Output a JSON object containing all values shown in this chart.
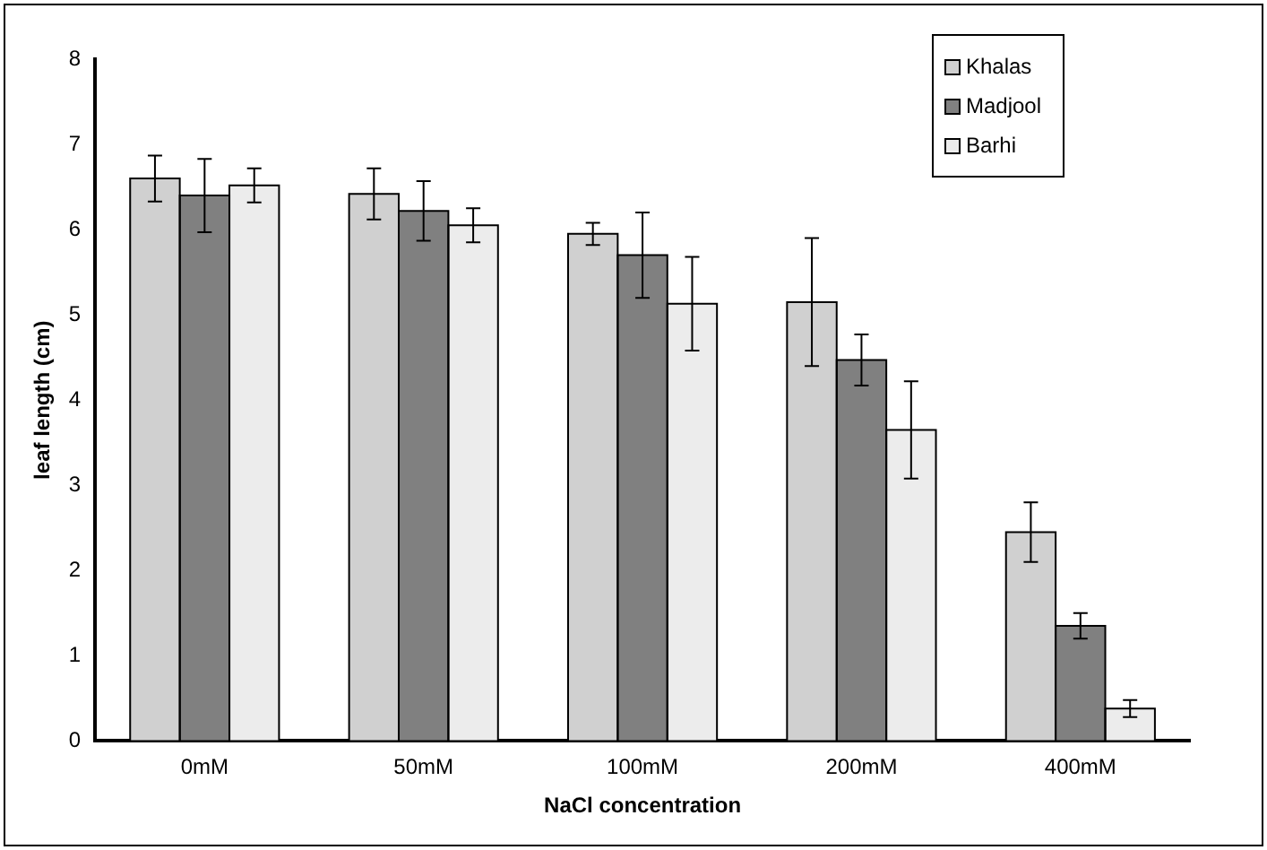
{
  "chart_data": {
    "type": "bar",
    "xlabel": "NaCl concentration",
    "ylabel": "leaf length (cm)",
    "categories": [
      "0mM",
      "50mM",
      "100mM",
      "200mM",
      "400mM"
    ],
    "series": [
      {
        "name": "Khalas",
        "color": "#d0d0d0",
        "values": [
          6.6,
          6.42,
          5.95,
          5.15,
          2.45
        ],
        "errors": [
          0.27,
          0.3,
          0.13,
          0.75,
          0.35
        ]
      },
      {
        "name": "Madjool",
        "color": "#808080",
        "values": [
          6.4,
          6.22,
          5.7,
          4.47,
          1.35
        ],
        "errors": [
          0.43,
          0.35,
          0.5,
          0.3,
          0.15
        ]
      },
      {
        "name": "Barhi",
        "color": "#ececec",
        "values": [
          6.52,
          6.05,
          5.13,
          3.65,
          0.38
        ],
        "errors": [
          0.2,
          0.2,
          0.55,
          0.57,
          0.1
        ]
      }
    ],
    "ylim": [
      0,
      8
    ],
    "yticks": [
      0,
      1,
      2,
      3,
      4,
      5,
      6,
      7,
      8
    ],
    "grid": false,
    "legend": "top right"
  }
}
